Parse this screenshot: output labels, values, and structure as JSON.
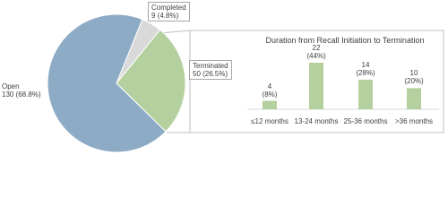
{
  "chart_data": [
    {
      "type": "pie",
      "categories": [
        "Completed",
        "Terminated",
        "Open"
      ],
      "values": [
        9,
        50,
        130
      ],
      "value_labels": [
        "9 (4.8%)",
        "50 (26.5%)",
        "130 (68.8%)"
      ],
      "colors": [
        "#d9d9d9",
        "#b5d09f",
        "#8eabc6"
      ]
    },
    {
      "type": "bar",
      "title": "Duration from Recall Initiation to Termination",
      "categories": [
        "≤12 months",
        "13-24 months",
        "25-36 months",
        ">36 months"
      ],
      "values": [
        4,
        22,
        14,
        10
      ],
      "value_labels": [
        "4\n(8%)",
        "22\n(44%)",
        "14\n(28%)",
        "10\n(20%)"
      ],
      "color": "#b5d09f"
    }
  ]
}
